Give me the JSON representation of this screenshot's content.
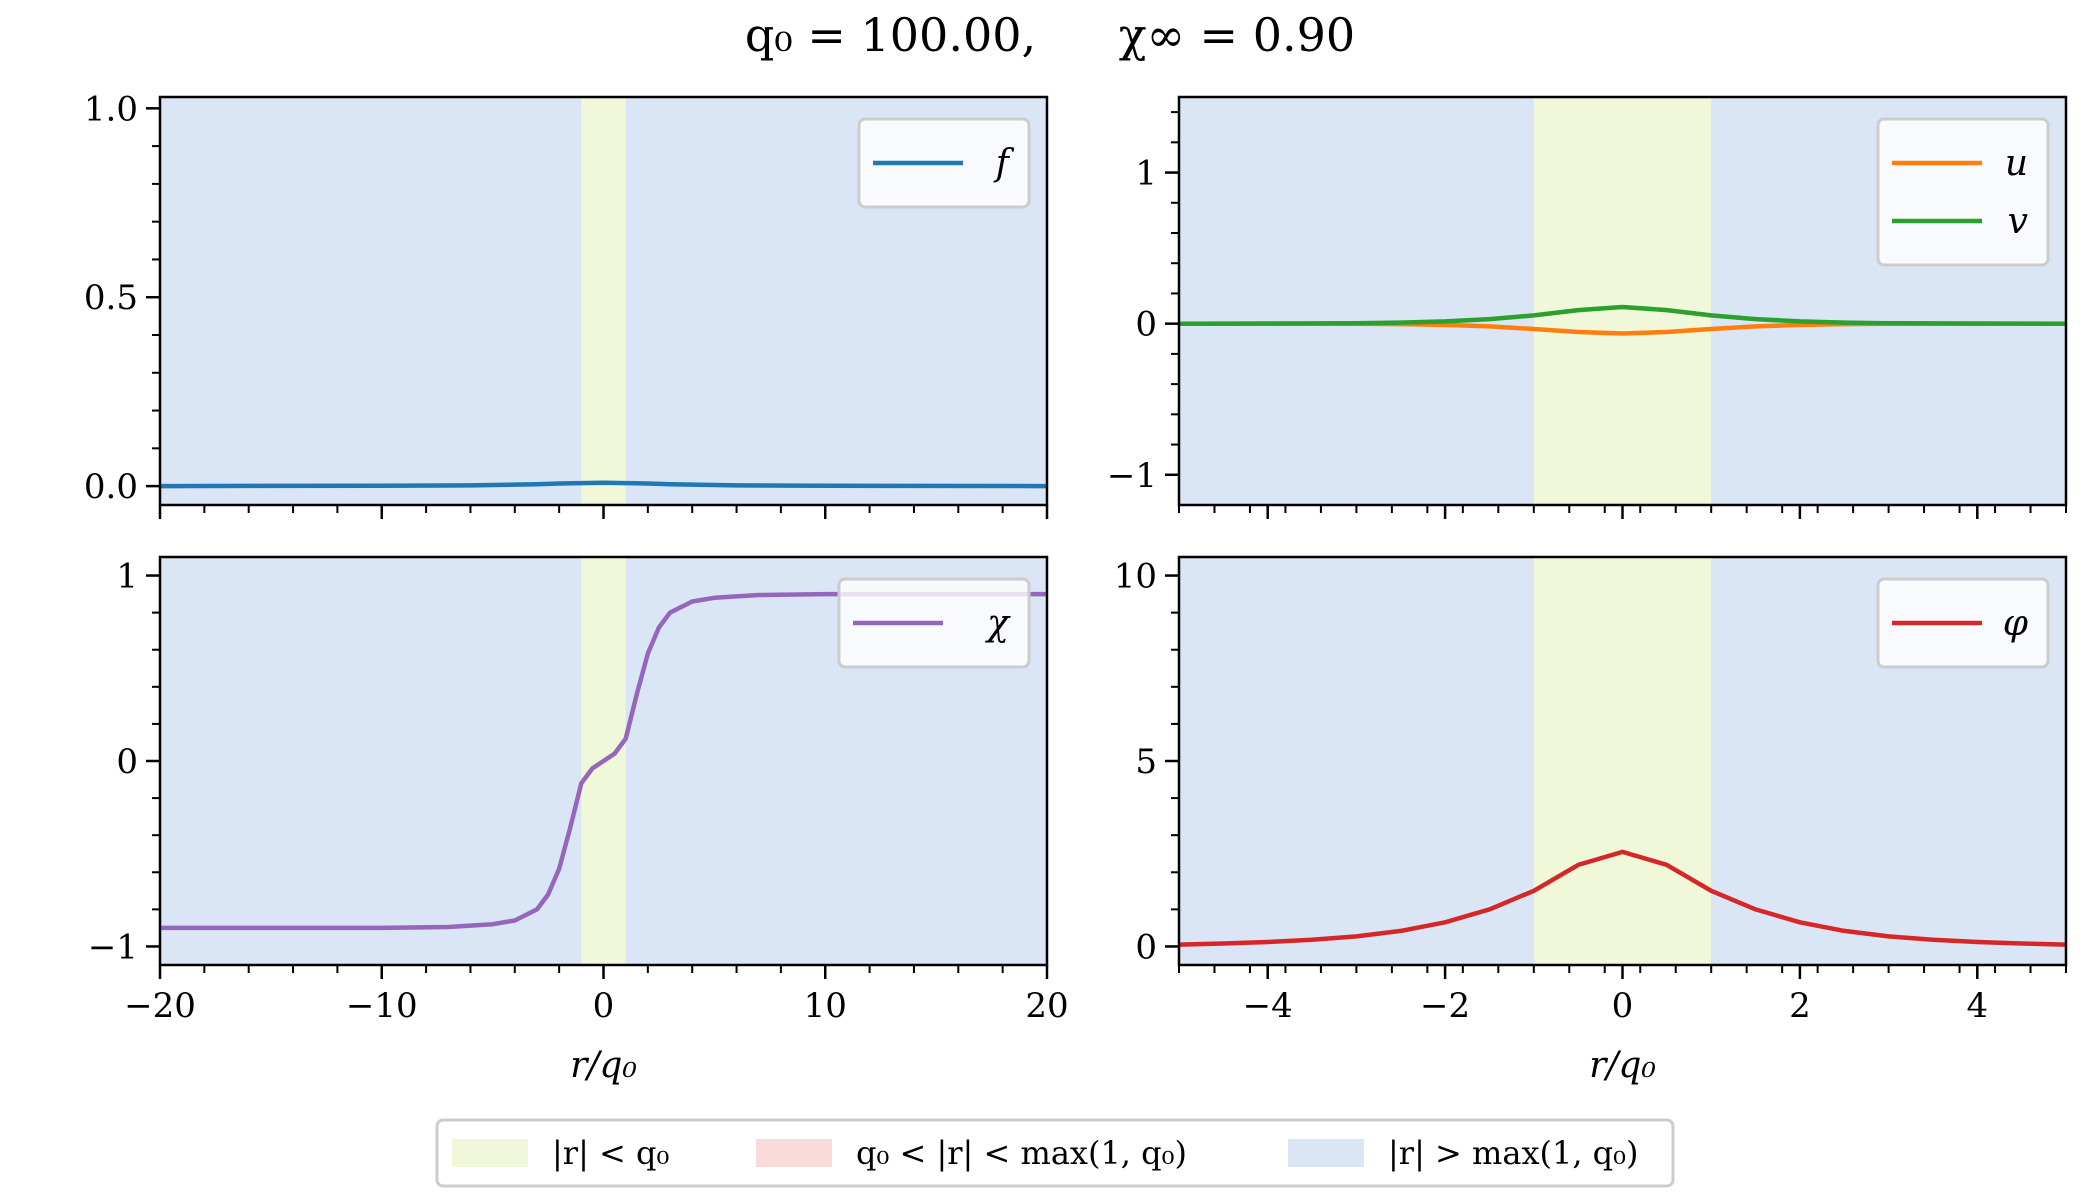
{
  "title": {
    "part1": "q₀ = 100.00,",
    "part2": "χ∞ = 0.90"
  },
  "chart_data": [
    {
      "type": "line",
      "panel": "top-left",
      "xlim": [
        -20,
        20
      ],
      "ylim": [
        -0.05,
        1.03
      ],
      "yticks": [
        0.0,
        0.5,
        1.0
      ],
      "ytick_labels": [
        "0.0",
        "0.5",
        "1.0"
      ],
      "xticks": [
        -20,
        -10,
        0,
        10,
        20
      ],
      "xtick_labels": [],
      "xlabel": "",
      "grid": false,
      "legend": "top-right",
      "series": [
        {
          "name": "f",
          "color": "#1f77b4",
          "x": [
            -20,
            -10,
            -6,
            -4,
            -3,
            -2,
            -1,
            0,
            1,
            2,
            3,
            4,
            6,
            10,
            20
          ],
          "y": [
            0.0,
            0.001,
            0.002,
            0.004,
            0.005,
            0.007,
            0.008,
            0.009,
            0.008,
            0.007,
            0.005,
            0.004,
            0.002,
            0.001,
            0.0
          ]
        }
      ]
    },
    {
      "type": "line",
      "panel": "top-right",
      "xlim": [
        -5,
        5
      ],
      "ylim": [
        -1.2,
        1.5
      ],
      "yticks": [
        -1,
        0,
        1
      ],
      "ytick_labels": [
        "−1",
        "0",
        "1"
      ],
      "xticks": [
        -4,
        -2,
        0,
        2,
        4
      ],
      "xtick_labels": [],
      "xlabel": "",
      "grid": false,
      "legend": "top-right",
      "series": [
        {
          "name": "u",
          "color": "#ff7f0e",
          "x": [
            -5,
            -4,
            -3,
            -2.5,
            -2,
            -1.5,
            -1,
            -0.5,
            0,
            0.5,
            1,
            1.5,
            2,
            2.5,
            3,
            4,
            5
          ],
          "y": [
            0,
            0,
            -0.001,
            -0.003,
            -0.008,
            -0.018,
            -0.035,
            -0.055,
            -0.065,
            -0.055,
            -0.035,
            -0.018,
            -0.008,
            -0.003,
            -0.001,
            0,
            0
          ]
        },
        {
          "name": "v",
          "color": "#2ca02c",
          "x": [
            -5,
            -4,
            -3,
            -2.5,
            -2,
            -1.5,
            -1,
            -0.5,
            0,
            0.5,
            1,
            1.5,
            2,
            2.5,
            3,
            4,
            5
          ],
          "y": [
            0,
            0.001,
            0.003,
            0.007,
            0.015,
            0.03,
            0.055,
            0.09,
            0.11,
            0.09,
            0.055,
            0.03,
            0.015,
            0.007,
            0.003,
            0.001,
            0
          ]
        }
      ]
    },
    {
      "type": "line",
      "panel": "bottom-left",
      "xlim": [
        -20,
        20
      ],
      "ylim": [
        -1.1,
        1.1
      ],
      "yticks": [
        -1,
        0,
        1
      ],
      "ytick_labels": [
        "−1",
        "0",
        "1"
      ],
      "xticks": [
        -20,
        -10,
        0,
        10,
        20
      ],
      "xtick_labels": [
        "−20",
        "−10",
        "0",
        "10",
        "20"
      ],
      "xlabel": "r/q₀",
      "grid": false,
      "legend": "top-right",
      "series": [
        {
          "name": "χ",
          "color": "#9467bd",
          "x": [
            -20,
            -10,
            -7,
            -5,
            -4,
            -3,
            -2.5,
            -2,
            -1.5,
            -1,
            -0.5,
            0,
            0.5,
            1,
            1.5,
            2,
            2.5,
            3,
            4,
            5,
            7,
            10,
            20
          ],
          "y": [
            -0.9,
            -0.9,
            -0.895,
            -0.88,
            -0.86,
            -0.8,
            -0.72,
            -0.58,
            -0.36,
            -0.12,
            -0.04,
            0.0,
            0.04,
            0.12,
            0.36,
            0.58,
            0.72,
            0.8,
            0.86,
            0.88,
            0.895,
            0.9,
            0.9
          ]
        }
      ]
    },
    {
      "type": "line",
      "panel": "bottom-right",
      "xlim": [
        -5,
        5
      ],
      "ylim": [
        -0.5,
        10.5
      ],
      "yticks": [
        0,
        5,
        10
      ],
      "ytick_labels": [
        "0",
        "5",
        "10"
      ],
      "xticks": [
        -4,
        -2,
        0,
        2,
        4
      ],
      "xtick_labels": [
        "−4",
        "−2",
        "0",
        "2",
        "4"
      ],
      "xlabel": "r/q₀",
      "grid": false,
      "legend": "top-right",
      "series": [
        {
          "name": "φ",
          "color": "#d62728",
          "x": [
            -5,
            -4.5,
            -4,
            -3.5,
            -3,
            -2.5,
            -2,
            -1.5,
            -1,
            -0.5,
            0,
            0.5,
            1,
            1.5,
            2,
            2.5,
            3,
            3.5,
            4,
            4.5,
            5
          ],
          "y": [
            0.05,
            0.08,
            0.12,
            0.18,
            0.27,
            0.42,
            0.65,
            1.0,
            1.5,
            2.2,
            2.55,
            2.2,
            1.5,
            1.0,
            0.65,
            0.42,
            0.27,
            0.18,
            0.12,
            0.08,
            0.05
          ]
        }
      ]
    }
  ],
  "shading": {
    "inner_halfwidth": 1,
    "inner_color": "#f1f7d9",
    "middle_color": "#f9dbdb",
    "outer_color": "#dae6f5"
  },
  "bottom_legend": [
    {
      "label": "|r| < q₀",
      "color": "#f1f7d9"
    },
    {
      "label": "q₀ < |r| < max(1, q₀)",
      "color": "#f9dbdb"
    },
    {
      "label": "|r| > max(1, q₀)",
      "color": "#dae6f5"
    }
  ]
}
